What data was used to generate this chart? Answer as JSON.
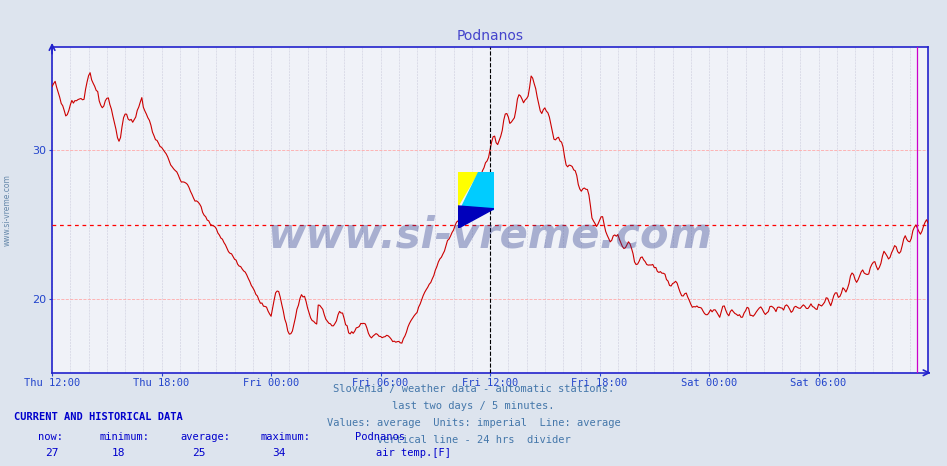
{
  "title": "Podnanos",
  "title_color": "#4444cc",
  "background_color": "#dde4ee",
  "plot_bg_color": "#f0f2f8",
  "line_color": "#cc0000",
  "grid_color_h": "#ffaaaa",
  "grid_color_v": "#ccccdd",
  "avg_line_color": "#ff0000",
  "vline_24h_color": "#000000",
  "vline_now_color": "#cc00cc",
  "axis_color": "#2222cc",
  "tick_color": "#2244cc",
  "watermark_text": "www.si-vreme.com",
  "watermark_color": "#223388",
  "watermark_alpha": 0.35,
  "sidebar_text": "www.si-vreme.com",
  "sidebar_color": "#6688aa",
  "x_labels": [
    "Thu 12:00",
    "Thu 18:00",
    "Fri 00:00",
    "Fri 06:00",
    "Fri 12:00",
    "Fri 18:00",
    "Sat 00:00",
    "Sat 06:00"
  ],
  "x_positions": [
    0,
    72,
    144,
    216,
    288,
    360,
    432,
    504
  ],
  "yticks": [
    20,
    30
  ],
  "ylim": [
    15,
    37
  ],
  "xlim": [
    0,
    576
  ],
  "avg_value": 25,
  "footer_lines": [
    "Slovenia / weather data - automatic stations.",
    "last two days / 5 minutes.",
    "Values: average  Units: imperial  Line: average",
    "vertical line - 24 hrs  divider"
  ],
  "footer_color": "#4477aa",
  "current_label": "CURRENT AND HISTORICAL DATA",
  "current_color": "#0000cc",
  "stats_headers": [
    "now:",
    "minimum:",
    "average:",
    "maximum:",
    "Podnanos"
  ],
  "stats_values": [
    "27",
    "18",
    "25",
    "34"
  ],
  "legend_label": "air temp.[F]",
  "legend_color": "#880000",
  "vline_24h_x": 288,
  "vline_now_x": 569,
  "logo_yellow": "#ffff00",
  "logo_cyan": "#00ccff",
  "logo_blue": "#0000bb"
}
